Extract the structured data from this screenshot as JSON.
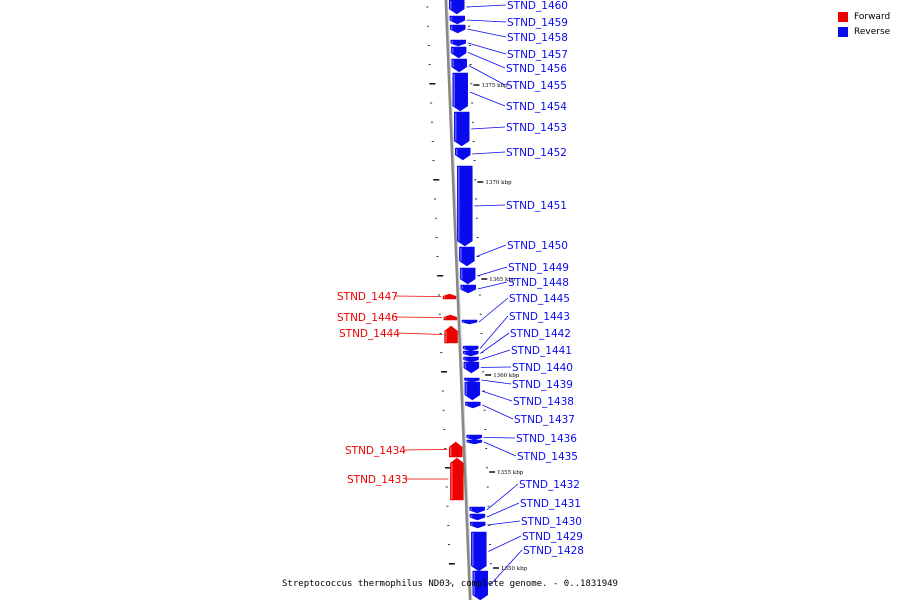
{
  "caption": "Streptococcus thermophilus ND03, complete genome. - 0..1831949",
  "legend": [
    {
      "label": "Forward",
      "color": "#ee0000"
    },
    {
      "label": "Reverse",
      "color": "#0a0aee"
    }
  ],
  "colors": {
    "forward": "#ee0000",
    "reverse": "#0a0aee",
    "backbone": "#888888"
  },
  "scale_labels": [
    "1375 kbp",
    "1370 kbp",
    "1365 kbp",
    "1360 kbp",
    "1355 kbp",
    "1350 kbp"
  ],
  "genes": [
    {
      "name": "STND_1460",
      "strand": "reverse"
    },
    {
      "name": "STND_1459",
      "strand": "reverse"
    },
    {
      "name": "STND_1458",
      "strand": "reverse"
    },
    {
      "name": "STND_1457",
      "strand": "reverse"
    },
    {
      "name": "STND_1456",
      "strand": "reverse"
    },
    {
      "name": "STND_1455",
      "strand": "reverse"
    },
    {
      "name": "STND_1454",
      "strand": "reverse"
    },
    {
      "name": "STND_1453",
      "strand": "reverse"
    },
    {
      "name": "STND_1452",
      "strand": "reverse"
    },
    {
      "name": "STND_1451",
      "strand": "reverse"
    },
    {
      "name": "STND_1450",
      "strand": "reverse"
    },
    {
      "name": "STND_1449",
      "strand": "reverse"
    },
    {
      "name": "STND_1448",
      "strand": "reverse"
    },
    {
      "name": "STND_1447",
      "strand": "forward"
    },
    {
      "name": "STND_1446",
      "strand": "forward"
    },
    {
      "name": "STND_1445",
      "strand": "reverse"
    },
    {
      "name": "STND_1444",
      "strand": "forward"
    },
    {
      "name": "STND_1443",
      "strand": "reverse"
    },
    {
      "name": "STND_1442",
      "strand": "reverse"
    },
    {
      "name": "STND_1441",
      "strand": "reverse"
    },
    {
      "name": "STND_1440",
      "strand": "reverse"
    },
    {
      "name": "STND_1439",
      "strand": "reverse"
    },
    {
      "name": "STND_1438",
      "strand": "reverse"
    },
    {
      "name": "STND_1437",
      "strand": "reverse"
    },
    {
      "name": "STND_1436",
      "strand": "reverse"
    },
    {
      "name": "STND_1435",
      "strand": "reverse"
    },
    {
      "name": "STND_1434",
      "strand": "forward"
    },
    {
      "name": "STND_1433",
      "strand": "forward"
    },
    {
      "name": "STND_1432",
      "strand": "reverse"
    },
    {
      "name": "STND_1431",
      "strand": "reverse"
    },
    {
      "name": "STND_1430",
      "strand": "reverse"
    },
    {
      "name": "STND_1429",
      "strand": "reverse"
    },
    {
      "name": "STND_1428",
      "strand": "reverse"
    }
  ]
}
